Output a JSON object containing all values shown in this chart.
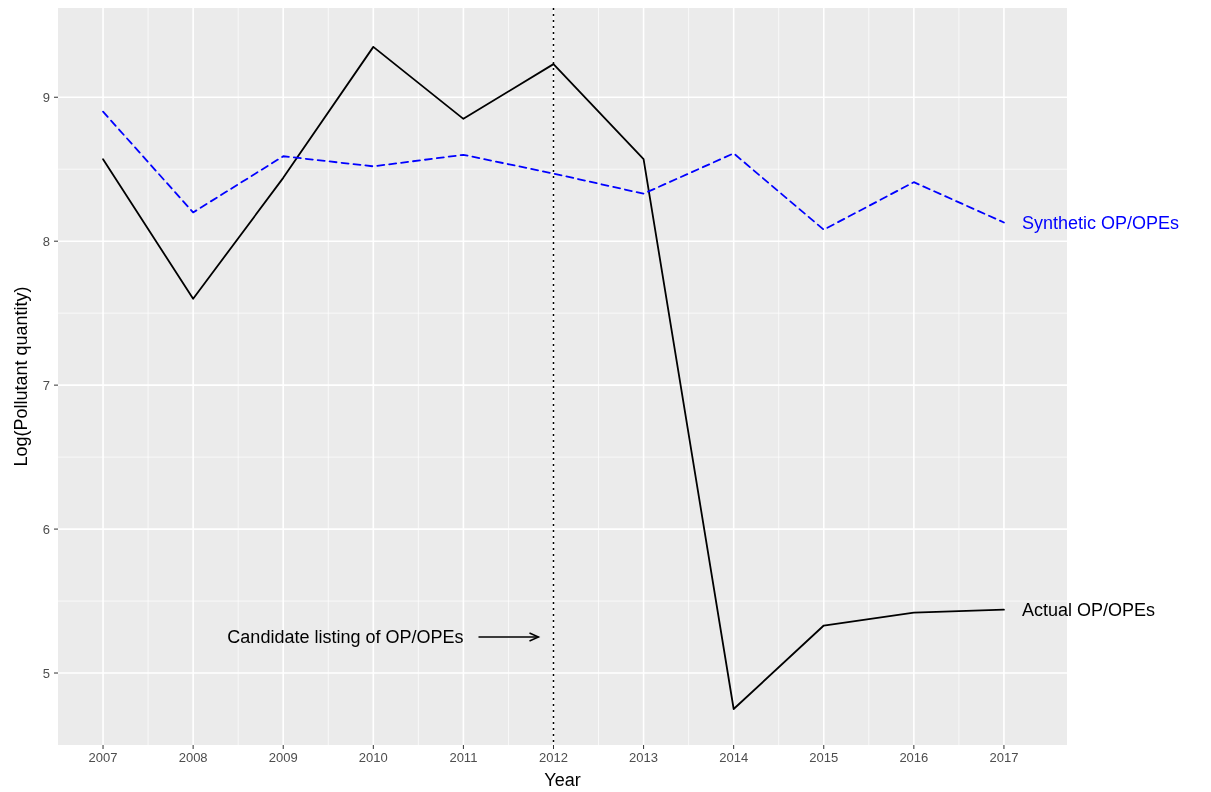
{
  "chart_data": {
    "type": "line",
    "xlabel": "Year",
    "ylabel": "Log(Pollutant quantity)",
    "x": [
      2007,
      2008,
      2009,
      2010,
      2011,
      2012,
      2013,
      2014,
      2015,
      2016,
      2017
    ],
    "series": [
      {
        "name": "Actual OP/OPEs",
        "color": "#000000",
        "line_style": "solid",
        "values": [
          8.57,
          7.6,
          8.44,
          9.35,
          8.85,
          9.23,
          8.57,
          4.75,
          5.33,
          5.42,
          5.44
        ]
      },
      {
        "name": "Synthetic OP/OPEs",
        "color": "#0000ff",
        "line_style": "dashed",
        "values": [
          8.9,
          8.2,
          8.59,
          8.52,
          8.6,
          8.47,
          8.33,
          8.61,
          8.08,
          8.41,
          8.13
        ]
      }
    ],
    "xlim": [
      2006.5,
      2017.7
    ],
    "xticks": [
      2007,
      2008,
      2009,
      2010,
      2011,
      2012,
      2013,
      2014,
      2015,
      2016,
      2017
    ],
    "ylim": [
      4.5,
      9.62
    ],
    "yticks": [
      5,
      6,
      7,
      8,
      9
    ],
    "ref_lines": [
      {
        "axis": "x",
        "value": 2012,
        "line_style": "dotted",
        "color": "#000000"
      }
    ],
    "annotations": [
      "Candidate listing of OP/OPEs"
    ],
    "grid": true,
    "legend": false,
    "marker": "none"
  }
}
